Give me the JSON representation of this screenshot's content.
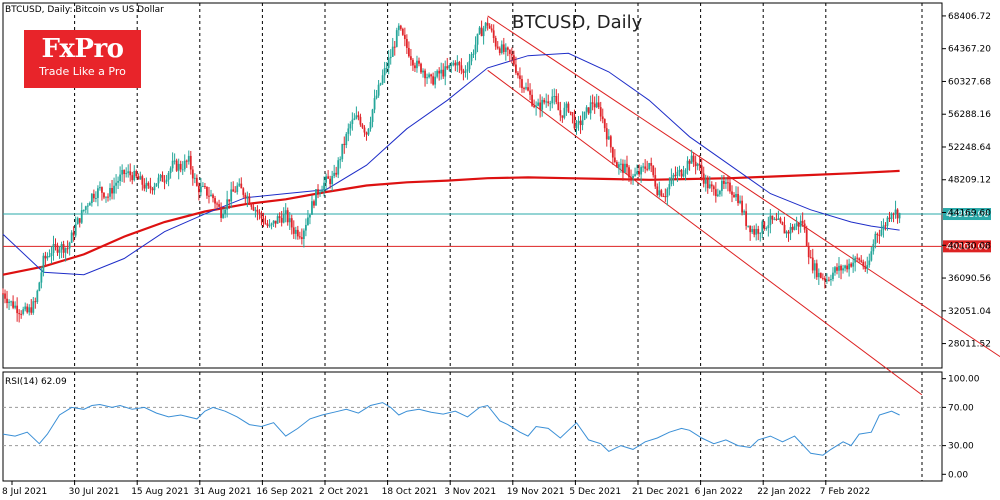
{
  "header": {
    "symbol_desc": "BTCUSD, Daily:  Bitcoin vs US Dollar",
    "title": "BTCUSD, Daily"
  },
  "logo": {
    "brand": "FxPro",
    "tagline": "Trade Like a Pro"
  },
  "rsi_header": "RSI(14) 62.09",
  "colors": {
    "up": "#26a69a",
    "down": "#e0242a",
    "ma_short": "#1e2dc8",
    "ma_long": "#dd1111",
    "channel": "#dd2222",
    "hline_price": "#2aa9a9",
    "hline_level": "#dd2222",
    "rsi_line": "#3a8fd6",
    "logo_bg": "#e8242a"
  },
  "chart_data": {
    "type": "candlestick",
    "title": "BTCUSD, Daily",
    "price_axis": {
      "ticks": [
        "68406.72",
        "64367.20",
        "60327.68",
        "56288.16",
        "52248.64",
        "48209.12",
        "44169.60",
        "40130.08",
        "36090.56",
        "32051.04",
        "28011.52"
      ]
    },
    "x_ticks": [
      "8 Jul 2021",
      "30 Jul 2021",
      "15 Aug 2021",
      "31 Aug 2021",
      "16 Sep 2021",
      "2 Oct 2021",
      "18 Oct 2021",
      "3 Nov 2021",
      "19 Nov 2021",
      "5 Dec 2021",
      "21 Dec 2021",
      "6 Jan 2022",
      "22 Jan 2022",
      "7 Feb 2022"
    ],
    "current_price": {
      "label": "43983.06",
      "value": 43983.06
    },
    "level": {
      "label": "40000.00",
      "value": 40000
    },
    "close_path": [
      [
        0,
        34200
      ],
      [
        4,
        33000
      ],
      [
        8,
        32200
      ],
      [
        12,
        31800
      ],
      [
        16,
        33000
      ],
      [
        20,
        38200
      ],
      [
        24,
        39500
      ],
      [
        28,
        40000
      ],
      [
        32,
        39800
      ],
      [
        36,
        42500
      ],
      [
        40,
        44500
      ],
      [
        44,
        46300
      ],
      [
        48,
        47000
      ],
      [
        52,
        46200
      ],
      [
        56,
        47900
      ],
      [
        60,
        49000
      ],
      [
        64,
        48800
      ],
      [
        68,
        48000
      ],
      [
        72,
        47000
      ],
      [
        76,
        48000
      ],
      [
        80,
        48500
      ],
      [
        84,
        50000
      ],
      [
        88,
        49800
      ],
      [
        92,
        50500
      ],
      [
        96,
        47300
      ],
      [
        100,
        46800
      ],
      [
        104,
        46000
      ],
      [
        108,
        44200
      ],
      [
        112,
        46000
      ],
      [
        116,
        47300
      ],
      [
        120,
        46500
      ],
      [
        124,
        45000
      ],
      [
        128,
        43500
      ],
      [
        132,
        42200
      ],
      [
        136,
        43400
      ],
      [
        140,
        43800
      ],
      [
        144,
        42000
      ],
      [
        148,
        41600
      ],
      [
        152,
        44400
      ],
      [
        156,
        47000
      ],
      [
        160,
        48000
      ],
      [
        164,
        48400
      ],
      [
        168,
        52000
      ],
      [
        172,
        55000
      ],
      [
        176,
        56000
      ],
      [
        180,
        54000
      ],
      [
        184,
        57800
      ],
      [
        188,
        60900
      ],
      [
        192,
        63500
      ],
      [
        196,
        66800
      ],
      [
        200,
        64500
      ],
      [
        204,
        62500
      ],
      [
        208,
        61800
      ],
      [
        212,
        60300
      ],
      [
        216,
        61300
      ],
      [
        220,
        61700
      ],
      [
        224,
        62800
      ],
      [
        228,
        61300
      ],
      [
        232,
        63500
      ],
      [
        236,
        66300
      ],
      [
        240,
        67500
      ],
      [
        244,
        65000
      ],
      [
        248,
        64000
      ],
      [
        252,
        63300
      ],
      [
        256,
        60600
      ],
      [
        260,
        59000
      ],
      [
        264,
        57000
      ],
      [
        268,
        57800
      ],
      [
        272,
        58500
      ],
      [
        276,
        56200
      ],
      [
        280,
        57200
      ],
      [
        284,
        54500
      ],
      [
        288,
        56100
      ],
      [
        292,
        57800
      ],
      [
        296,
        56500
      ],
      [
        300,
        53000
      ],
      [
        304,
        50000
      ],
      [
        308,
        49500
      ],
      [
        312,
        48500
      ],
      [
        316,
        49200
      ],
      [
        320,
        50300
      ],
      [
        324,
        47000
      ],
      [
        328,
        46500
      ],
      [
        332,
        48600
      ],
      [
        336,
        49200
      ],
      [
        340,
        50700
      ],
      [
        344,
        50200
      ],
      [
        348,
        47800
      ],
      [
        352,
        46700
      ],
      [
        356,
        47400
      ],
      [
        360,
        47200
      ],
      [
        364,
        46000
      ],
      [
        368,
        43000
      ],
      [
        372,
        41800
      ],
      [
        376,
        42400
      ],
      [
        380,
        43100
      ],
      [
        384,
        42800
      ],
      [
        388,
        41700
      ],
      [
        392,
        42500
      ],
      [
        396,
        43000
      ],
      [
        400,
        38100
      ],
      [
        404,
        36500
      ],
      [
        408,
        36000
      ],
      [
        412,
        37000
      ],
      [
        416,
        37300
      ],
      [
        420,
        38000
      ],
      [
        424,
        38400
      ],
      [
        428,
        37000
      ],
      [
        432,
        41500
      ],
      [
        436,
        42300
      ],
      [
        440,
        44500
      ],
      [
        444,
        43983
      ]
    ],
    "ma_short_path": [
      [
        0,
        41500
      ],
      [
        20,
        36800
      ],
      [
        40,
        36500
      ],
      [
        60,
        38500
      ],
      [
        80,
        41800
      ],
      [
        100,
        44000
      ],
      [
        120,
        46000
      ],
      [
        140,
        46500
      ],
      [
        160,
        47000
      ],
      [
        180,
        50000
      ],
      [
        200,
        54500
      ],
      [
        220,
        58000
      ],
      [
        240,
        62000
      ],
      [
        260,
        63500
      ],
      [
        280,
        63800
      ],
      [
        300,
        61500
      ],
      [
        320,
        58000
      ],
      [
        340,
        53500
      ],
      [
        360,
        50000
      ],
      [
        380,
        46500
      ],
      [
        400,
        44500
      ],
      [
        420,
        43000
      ],
      [
        430,
        42500
      ],
      [
        444,
        42000
      ]
    ],
    "ma_long_path": [
      [
        0,
        36500
      ],
      [
        20,
        37500
      ],
      [
        40,
        39000
      ],
      [
        60,
        41200
      ],
      [
        80,
        43000
      ],
      [
        100,
        44300
      ],
      [
        120,
        45200
      ],
      [
        140,
        45800
      ],
      [
        160,
        46700
      ],
      [
        180,
        47500
      ],
      [
        200,
        47900
      ],
      [
        220,
        48100
      ],
      [
        240,
        48400
      ],
      [
        260,
        48500
      ],
      [
        280,
        48400
      ],
      [
        300,
        48300
      ],
      [
        320,
        48200
      ],
      [
        340,
        48300
      ],
      [
        360,
        48400
      ],
      [
        380,
        48600
      ],
      [
        400,
        48800
      ],
      [
        420,
        49000
      ],
      [
        444,
        49300
      ]
    ],
    "channel": [
      {
        "from": [
          240,
          68400
        ],
        "to": [
          495,
          26200
        ]
      },
      {
        "from": [
          240,
          61700
        ],
        "to": [
          455,
          21700
        ]
      }
    ],
    "rsi": {
      "levels": [
        0,
        30,
        70,
        100
      ],
      "axis_ticks": [
        "100.00",
        "70.00",
        "30.00",
        "0.00"
      ],
      "path": [
        [
          0,
          42
        ],
        [
          6,
          40
        ],
        [
          12,
          44
        ],
        [
          18,
          32
        ],
        [
          22,
          42
        ],
        [
          28,
          62
        ],
        [
          34,
          70
        ],
        [
          40,
          68
        ],
        [
          44,
          72
        ],
        [
          48,
          73
        ],
        [
          54,
          70
        ],
        [
          58,
          72
        ],
        [
          64,
          68
        ],
        [
          70,
          70
        ],
        [
          76,
          64
        ],
        [
          82,
          60
        ],
        [
          88,
          62
        ],
        [
          96,
          58
        ],
        [
          100,
          66
        ],
        [
          104,
          70
        ],
        [
          110,
          66
        ],
        [
          116,
          60
        ],
        [
          122,
          52
        ],
        [
          128,
          50
        ],
        [
          134,
          54
        ],
        [
          140,
          40
        ],
        [
          146,
          48
        ],
        [
          152,
          58
        ],
        [
          158,
          62
        ],
        [
          164,
          65
        ],
        [
          170,
          68
        ],
        [
          176,
          64
        ],
        [
          182,
          72
        ],
        [
          188,
          75
        ],
        [
          192,
          70
        ],
        [
          196,
          62
        ],
        [
          200,
          66
        ],
        [
          206,
          68
        ],
        [
          212,
          65
        ],
        [
          218,
          63
        ],
        [
          224,
          66
        ],
        [
          230,
          60
        ],
        [
          236,
          70
        ],
        [
          240,
          72
        ],
        [
          246,
          56
        ],
        [
          250,
          52
        ],
        [
          256,
          44
        ],
        [
          260,
          40
        ],
        [
          264,
          50
        ],
        [
          270,
          48
        ],
        [
          276,
          38
        ],
        [
          280,
          46
        ],
        [
          284,
          54
        ],
        [
          290,
          36
        ],
        [
          296,
          32
        ],
        [
          300,
          24
        ],
        [
          306,
          30
        ],
        [
          312,
          26
        ],
        [
          318,
          34
        ],
        [
          324,
          38
        ],
        [
          330,
          44
        ],
        [
          336,
          48
        ],
        [
          340,
          46
        ],
        [
          346,
          38
        ],
        [
          352,
          32
        ],
        [
          358,
          36
        ],
        [
          364,
          30
        ],
        [
          370,
          28
        ],
        [
          374,
          36
        ],
        [
          380,
          40
        ],
        [
          386,
          34
        ],
        [
          392,
          40
        ],
        [
          400,
          22
        ],
        [
          406,
          20
        ],
        [
          410,
          26
        ],
        [
          416,
          34
        ],
        [
          420,
          30
        ],
        [
          424,
          42
        ],
        [
          430,
          44
        ],
        [
          434,
          62
        ],
        [
          440,
          66
        ],
        [
          444,
          62
        ]
      ]
    }
  }
}
